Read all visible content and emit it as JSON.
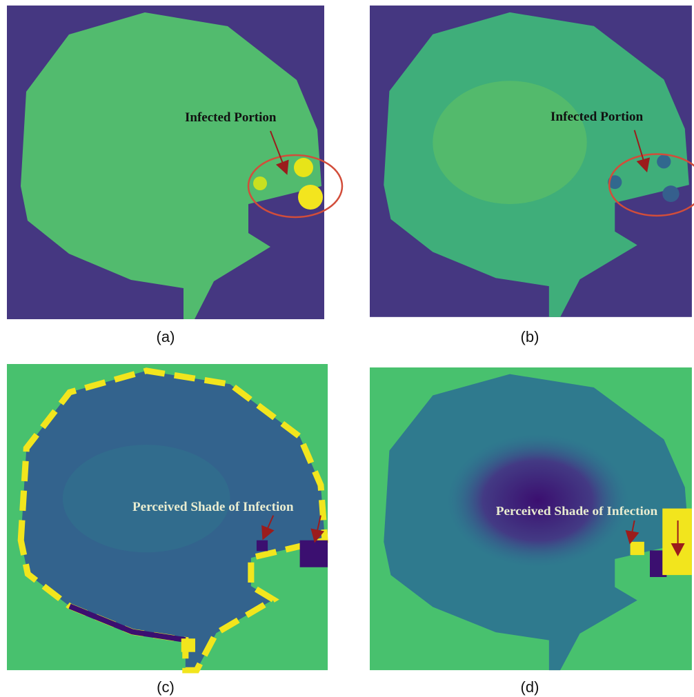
{
  "panels": [
    {
      "label": "(a)",
      "annotation": "Infected Portion"
    },
    {
      "label": "(b)",
      "annotation": "Infected Portion"
    },
    {
      "label": "(c)",
      "annotation": "Perceived Shade of Infection"
    },
    {
      "label": "(d)",
      "annotation": "Perceived Shade of Infection"
    }
  ]
}
